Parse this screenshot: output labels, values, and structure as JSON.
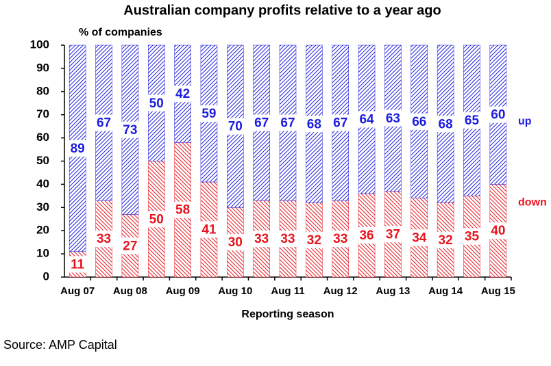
{
  "chart_data": {
    "type": "stacked_bar",
    "title": "Australian company profits relative to a year ago",
    "y_label": "% of companies",
    "x_label": "Reporting season",
    "source": "Source: AMP Capital",
    "categories": [
      "Aug 07",
      null,
      "Aug 08",
      null,
      "Aug 09",
      null,
      "Aug 10",
      null,
      "Aug 11",
      null,
      "Aug 12",
      null,
      "Aug 13",
      null,
      "Aug 14",
      null,
      "Aug 15"
    ],
    "series": [
      {
        "name": "down",
        "color": "#e8141e",
        "values": [
          11,
          33,
          27,
          50,
          58,
          41,
          30,
          33,
          33,
          32,
          33,
          36,
          37,
          34,
          32,
          35,
          40
        ]
      },
      {
        "name": "up",
        "color": "#1c1ce0",
        "values": [
          89,
          67,
          73,
          50,
          42,
          59,
          70,
          67,
          67,
          68,
          67,
          64,
          63,
          66,
          68,
          65,
          60
        ]
      }
    ],
    "ylim": [
      0,
      100
    ],
    "yticks": [
      0,
      10,
      20,
      30,
      40,
      50,
      60,
      70,
      80,
      90,
      100
    ]
  }
}
